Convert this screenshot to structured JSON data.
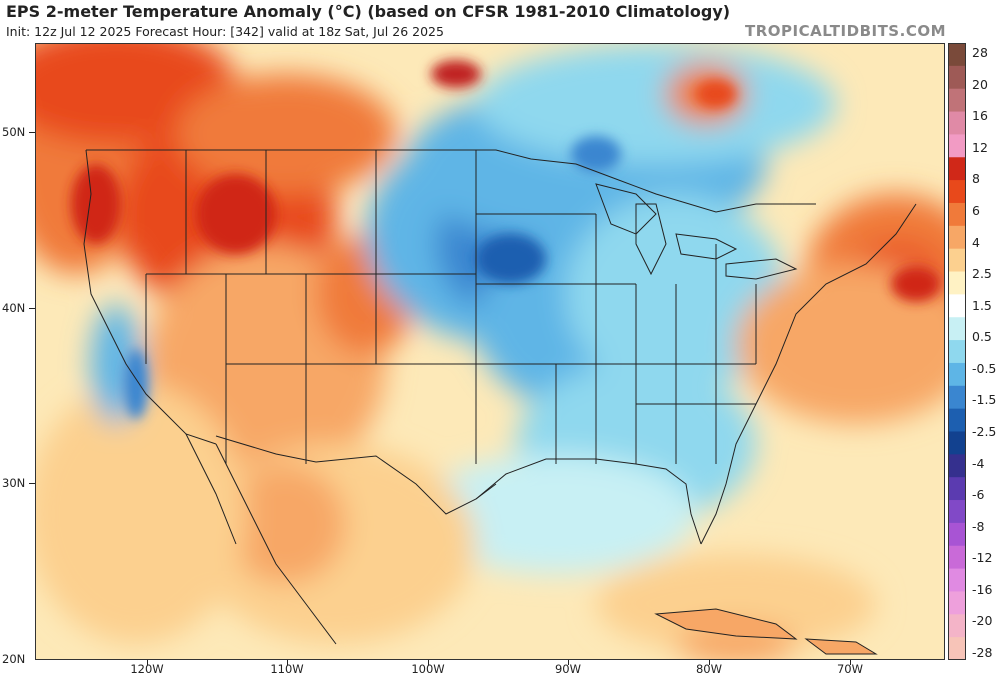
{
  "header": {
    "title": "EPS 2-meter Temperature Anomaly (°C) (based on CFSR 1981-2010 Climatology)",
    "subtitle": "Init: 12z Jul 12 2025   Forecast Hour: [342]   valid at 18z Sat, Jul 26 2025",
    "brand": "TROPICALTIDBITS.COM"
  },
  "axes": {
    "lat_labels": [
      "50N",
      "40N",
      "30N",
      "20N"
    ],
    "lon_labels": [
      "120W",
      "110W",
      "100W",
      "90W",
      "80W",
      "70W"
    ]
  },
  "colorbar": {
    "labels": [
      "28",
      "20",
      "16",
      "12",
      "8",
      "6",
      "4",
      "2.5",
      "1.5",
      "0.5",
      "-0.5",
      "-1.5",
      "-2.5",
      "-4",
      "-6",
      "-8",
      "-12",
      "-16",
      "-20",
      "-28"
    ],
    "colors": [
      "#7a4a3a",
      "#9e5a56",
      "#c07378",
      "#e08aa6",
      "#f29bc4",
      "#d02818",
      "#e8491b",
      "#f07a3a",
      "#f7a766",
      "#fcd08f",
      "#fff2c4",
      "#ffffff",
      "#c8f0f4",
      "#8fd8ee",
      "#5eb5e6",
      "#3a86d0",
      "#1d5fb0",
      "#12418f",
      "#35308e",
      "#5b3bb0",
      "#8149c7",
      "#a854d4",
      "#c96ad8",
      "#e08ae2",
      "#eea0dc",
      "#f4b4c8",
      "#f7c4b8"
    ]
  },
  "map": {
    "description_colors": {
      "warm_anomaly": "#e8491b",
      "cool_anomaly": "#3a86d0",
      "neutral": "#ffffff"
    }
  }
}
